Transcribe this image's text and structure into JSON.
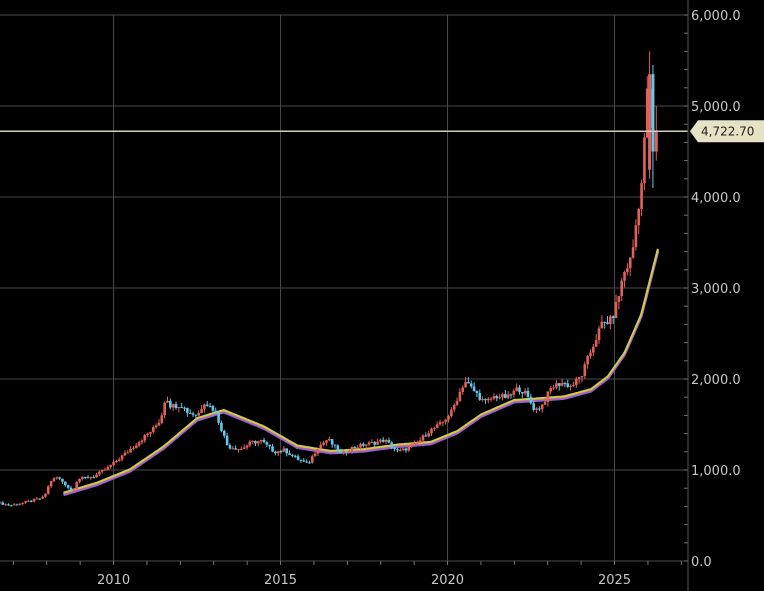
{
  "chart_data": {
    "type": "candlestick",
    "x_axis": {
      "ticks": [
        "2010",
        "2015",
        "2020",
        "2025"
      ],
      "range": [
        2006.6,
        2027.2
      ]
    },
    "y_axis": {
      "ticks": [
        "0.0",
        "1,000.0",
        "2,000.0",
        "3,000.0",
        "4,000.0",
        "5,000.0",
        "6,000.0"
      ],
      "range": [
        0,
        6000
      ],
      "position": "right"
    },
    "grid": true,
    "last_price": {
      "value": 4722.7,
      "label": "4,722.70"
    },
    "colors": {
      "up": "#e0625a",
      "down": "#66c7e8",
      "ma_yellow": "#c9cf4a",
      "ma_purple": "#a35bd6",
      "ma_blue": "#5a78d8",
      "last_line": "#d2cfb3"
    },
    "price_series": [
      [
        2006.6,
        640
      ],
      [
        2007.0,
        610
      ],
      [
        2007.5,
        650
      ],
      [
        2008.0,
        700
      ],
      [
        2008.2,
        880
      ],
      [
        2008.4,
        920
      ],
      [
        2008.6,
        860
      ],
      [
        2008.85,
        760
      ],
      [
        2009.0,
        900
      ],
      [
        2009.5,
        930
      ],
      [
        2009.9,
        1020
      ],
      [
        2010.2,
        1110
      ],
      [
        2010.5,
        1200
      ],
      [
        2010.9,
        1330
      ],
      [
        2011.3,
        1460
      ],
      [
        2011.5,
        1560
      ],
      [
        2011.65,
        1820
      ],
      [
        2011.8,
        1700
      ],
      [
        2012.1,
        1720
      ],
      [
        2012.3,
        1640
      ],
      [
        2012.6,
        1600
      ],
      [
        2012.8,
        1750
      ],
      [
        2013.1,
        1660
      ],
      [
        2013.3,
        1470
      ],
      [
        2013.5,
        1260
      ],
      [
        2013.9,
        1230
      ],
      [
        2014.2,
        1300
      ],
      [
        2014.5,
        1320
      ],
      [
        2014.9,
        1200
      ],
      [
        2015.2,
        1220
      ],
      [
        2015.5,
        1140
      ],
      [
        2015.9,
        1060
      ],
      [
        2016.2,
        1250
      ],
      [
        2016.5,
        1340
      ],
      [
        2016.9,
        1170
      ],
      [
        2017.2,
        1240
      ],
      [
        2017.6,
        1280
      ],
      [
        2017.9,
        1300
      ],
      [
        2018.2,
        1330
      ],
      [
        2018.6,
        1200
      ],
      [
        2018.9,
        1240
      ],
      [
        2019.2,
        1300
      ],
      [
        2019.5,
        1420
      ],
      [
        2019.9,
        1510
      ],
      [
        2020.2,
        1640
      ],
      [
        2020.6,
        1980
      ],
      [
        2020.9,
        1860
      ],
      [
        2021.2,
        1740
      ],
      [
        2021.5,
        1810
      ],
      [
        2021.9,
        1800
      ],
      [
        2022.2,
        1900
      ],
      [
        2022.4,
        1850
      ],
      [
        2022.7,
        1660
      ],
      [
        2022.9,
        1700
      ],
      [
        2023.2,
        1910
      ],
      [
        2023.5,
        1960
      ],
      [
        2023.8,
        1920
      ],
      [
        2024.1,
        2040
      ],
      [
        2024.4,
        2330
      ],
      [
        2024.7,
        2600
      ],
      [
        2025.0,
        2650
      ],
      [
        2025.2,
        2900
      ],
      [
        2025.35,
        3150
      ],
      [
        2025.6,
        3340
      ],
      [
        2025.8,
        3900
      ],
      [
        2025.95,
        4300
      ],
      [
        2026.05,
        5300
      ],
      [
        2026.15,
        4700
      ],
      [
        2026.25,
        4722.7
      ]
    ],
    "ma_series": [
      [
        2008.5,
        740
      ],
      [
        2009.5,
        850
      ],
      [
        2010.5,
        1000
      ],
      [
        2011.5,
        1250
      ],
      [
        2012.5,
        1560
      ],
      [
        2013.3,
        1650
      ],
      [
        2014.5,
        1470
      ],
      [
        2015.5,
        1260
      ],
      [
        2016.5,
        1200
      ],
      [
        2017.5,
        1220
      ],
      [
        2018.5,
        1270
      ],
      [
        2019.5,
        1300
      ],
      [
        2020.3,
        1420
      ],
      [
        2021.0,
        1600
      ],
      [
        2022.0,
        1760
      ],
      [
        2022.8,
        1780
      ],
      [
        2023.5,
        1800
      ],
      [
        2024.3,
        1880
      ],
      [
        2024.8,
        2020
      ],
      [
        2025.3,
        2280
      ],
      [
        2025.8,
        2700
      ],
      [
        2026.3,
        3420
      ]
    ]
  }
}
